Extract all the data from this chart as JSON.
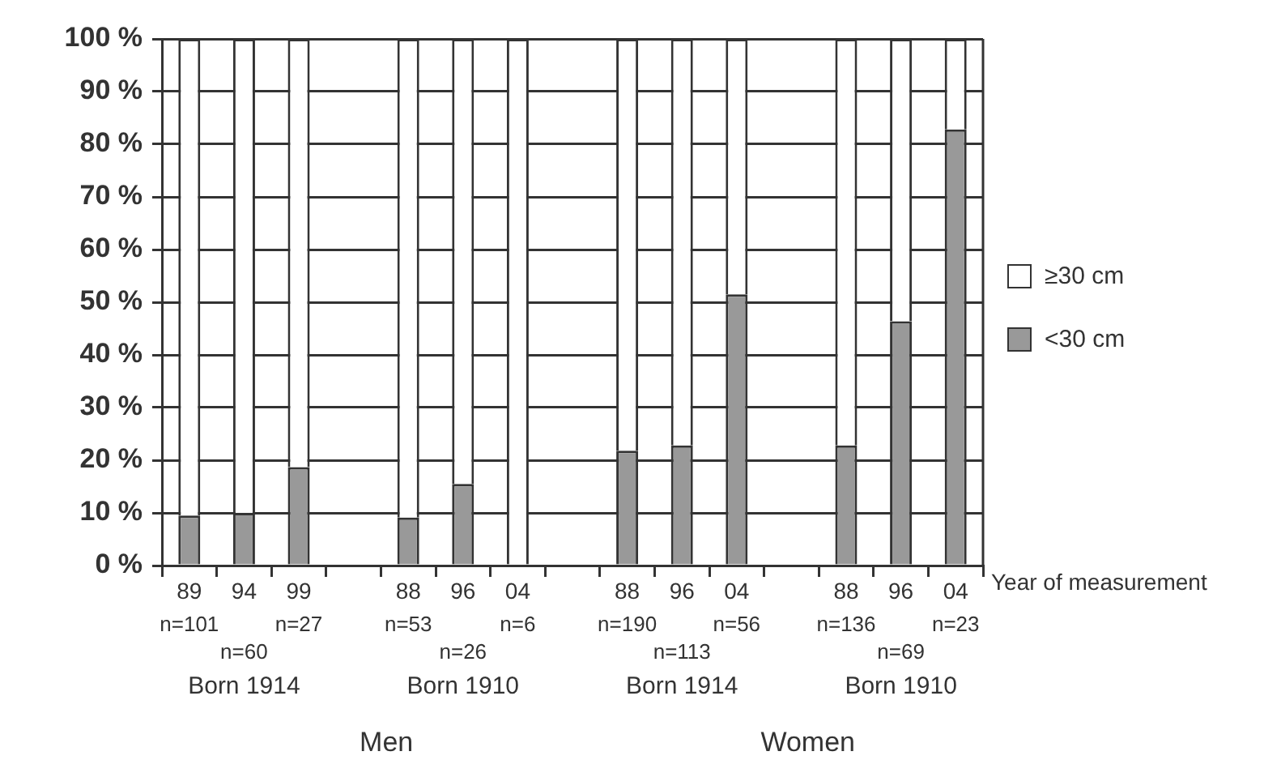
{
  "chart_data": {
    "type": "bar",
    "stacked": true,
    "xlabel": "Year of measurement",
    "categories": [
      "89",
      "94",
      "99",
      null,
      "88",
      "96",
      "04",
      null,
      "88",
      "96",
      "04",
      null,
      "88",
      "96",
      "04"
    ],
    "series": [
      {
        "name": "<30 cm",
        "color": "#999999",
        "values": [
          9.5,
          10,
          18.7,
          null,
          9.1,
          15.5,
          0,
          null,
          21.8,
          22.8,
          51.5,
          null,
          22.8,
          46.4,
          82.8
        ]
      },
      {
        "name": "≥30 cm",
        "color": "#ffffff",
        "values": [
          90.5,
          90,
          81.3,
          null,
          90.9,
          84.5,
          100,
          null,
          78.2,
          77.2,
          48.5,
          null,
          77.2,
          53.6,
          17.2
        ]
      }
    ],
    "ylim": [
      0,
      100
    ],
    "yticks": [
      {
        "value": 0,
        "label": "0 %"
      },
      {
        "value": 10,
        "label": "10 %"
      },
      {
        "value": 20,
        "label": "20 %"
      },
      {
        "value": 30,
        "label": "30 %"
      },
      {
        "value": 40,
        "label": "40 %"
      },
      {
        "value": 50,
        "label": "50 %"
      },
      {
        "value": 60,
        "label": "60 %"
      },
      {
        "value": 70,
        "label": "70 %"
      },
      {
        "value": 80,
        "label": "80 %"
      },
      {
        "value": 90,
        "label": "90 %"
      },
      {
        "value": 100,
        "label": "100 %"
      }
    ],
    "grid": "y",
    "legend": "right",
    "annotations": [
      "n=101",
      "n=60",
      "n=27",
      "Born 1914",
      "n=53",
      "n=26",
      "n=6",
      "Born 1910",
      "n=190",
      "n=113",
      "n=56",
      "Born 1914",
      "n=136",
      "n=69",
      "n=23",
      "Born 1910",
      "Men",
      "Women"
    ]
  }
}
